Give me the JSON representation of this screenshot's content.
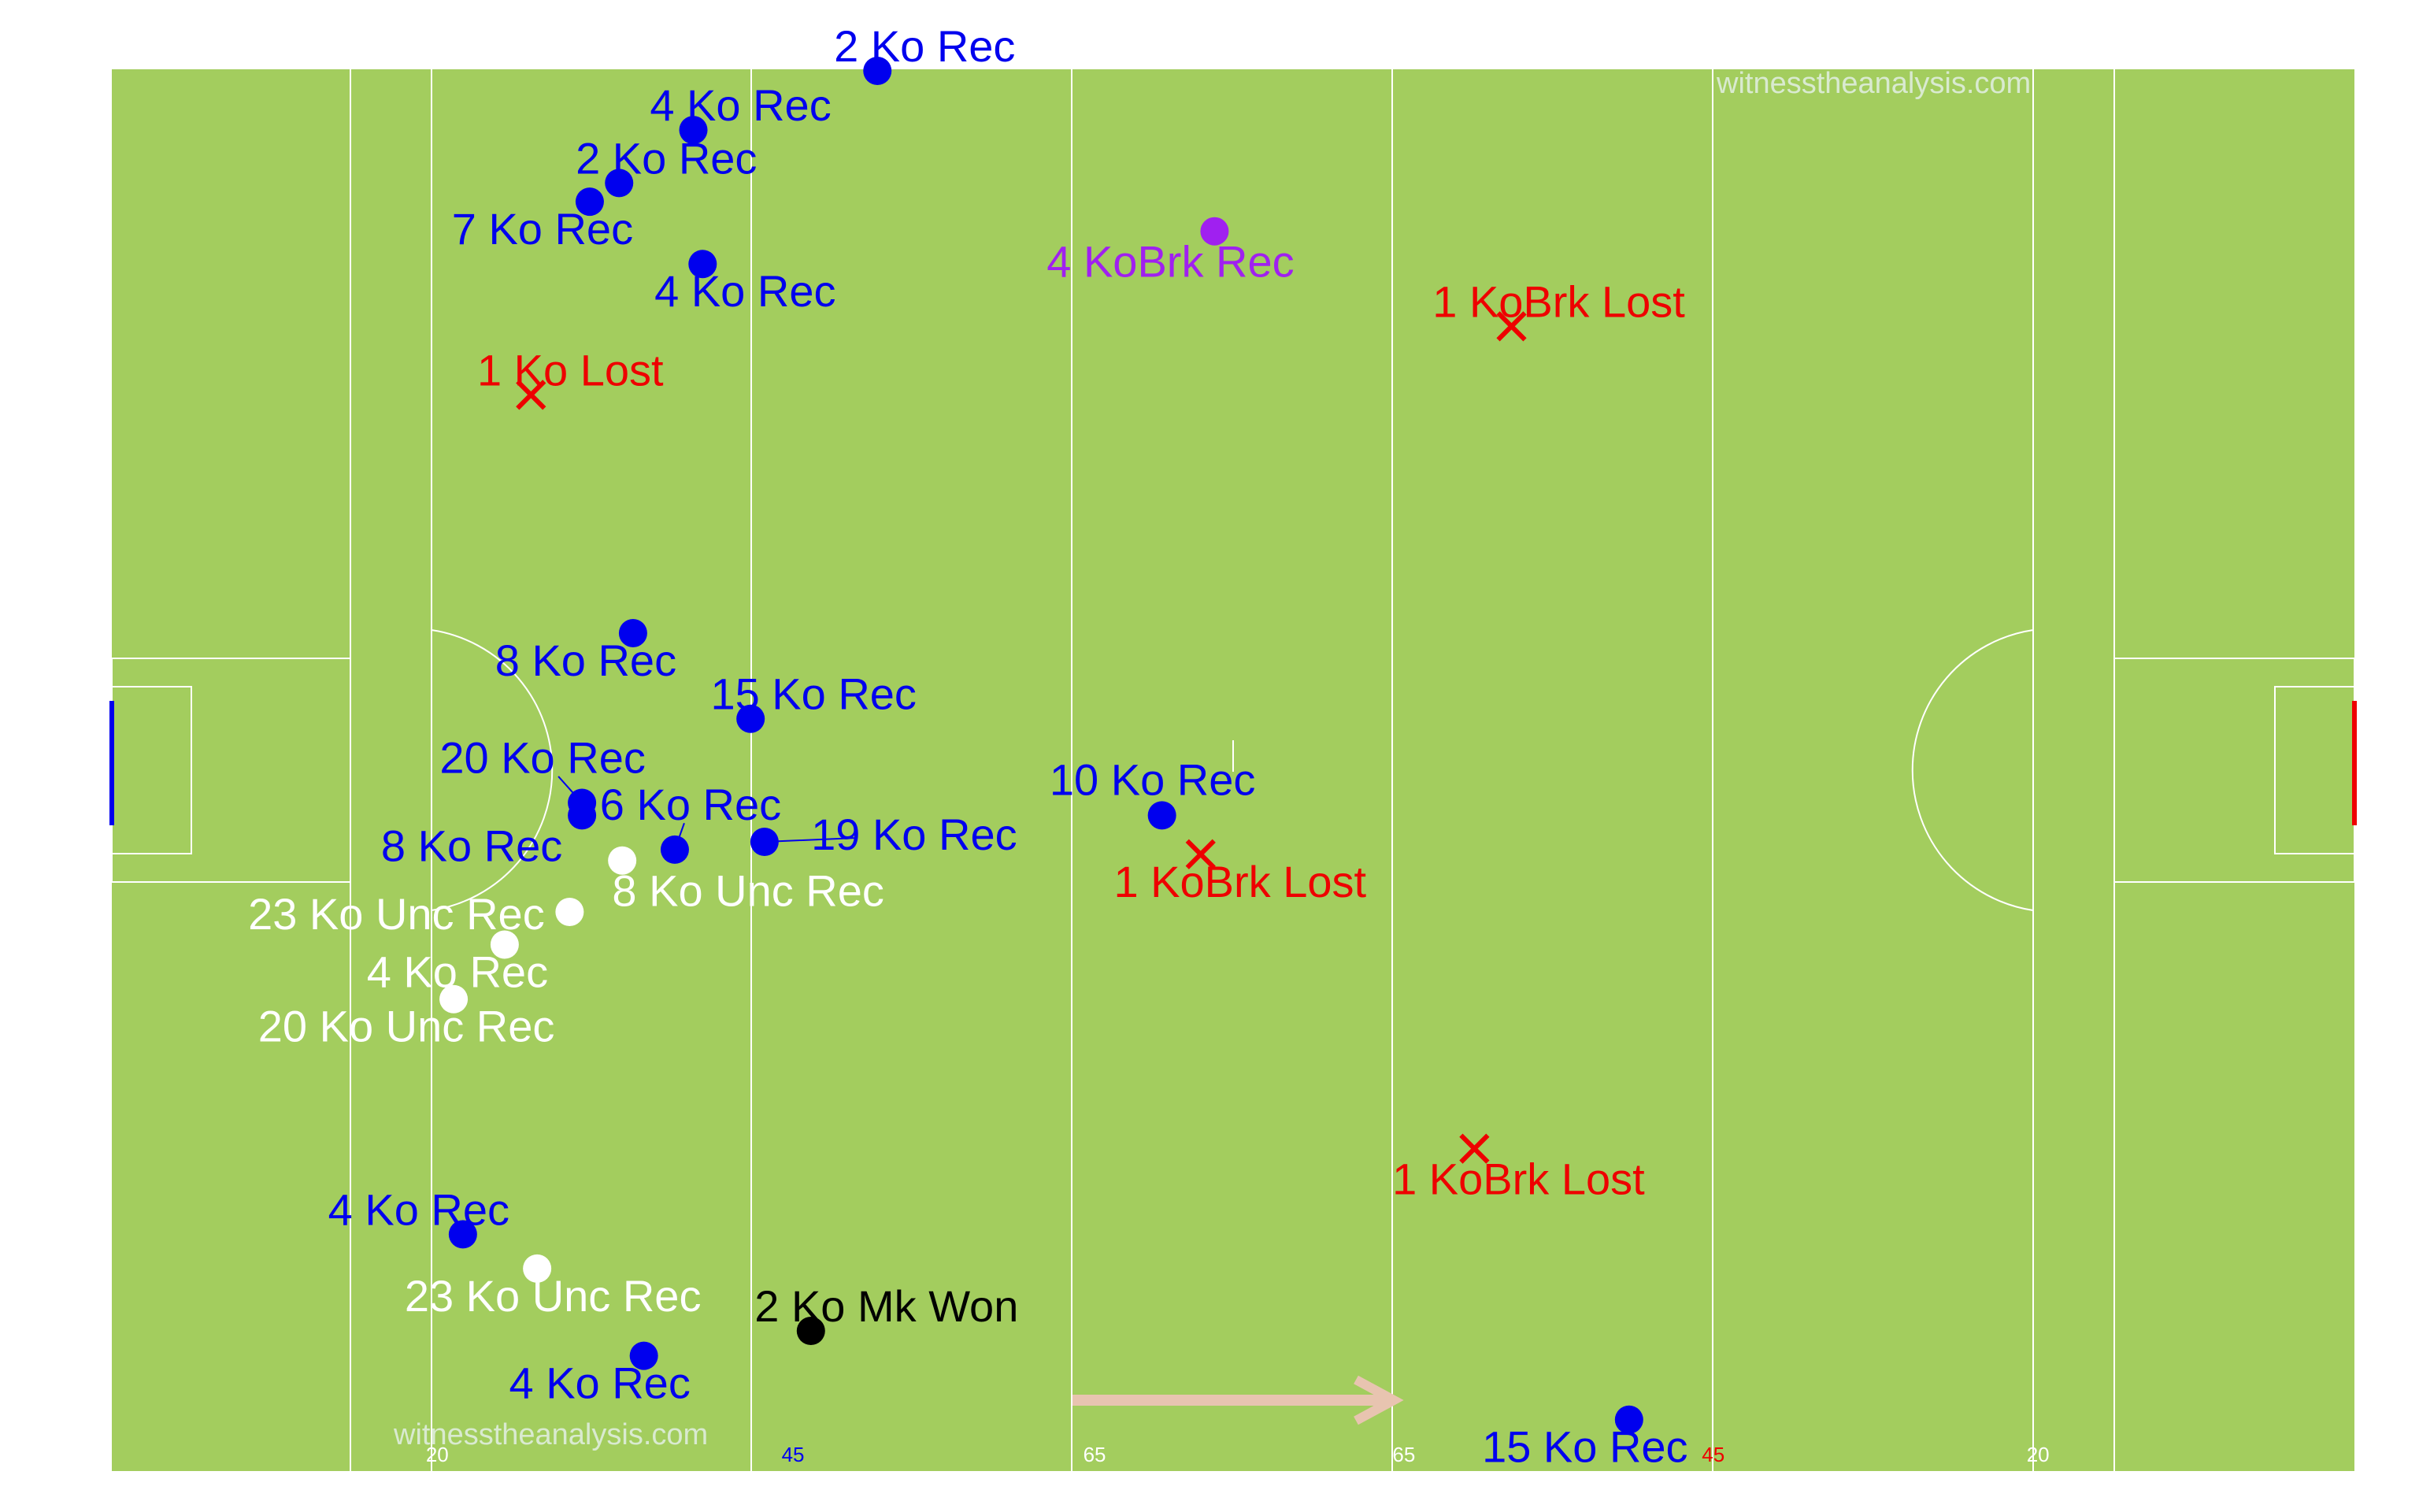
{
  "watermark_text": "witnesstheanalysis.com",
  "colors": {
    "grass": "#a3cd5e",
    "lines": "#ffffff",
    "rec": "#0000ee",
    "lost": "#ee0000",
    "kobrk_rec": "#a020f0",
    "mark_won": "#000000",
    "unc_rec": "#ffffff",
    "direction_arrow": "#e8c4b0",
    "left_goal": "#0000ee",
    "right_goal": "#ee0000"
  },
  "chart_data": {
    "type": "scatter",
    "title": "",
    "xlabel": "",
    "ylabel": "",
    "xlim": [
      0,
      145
    ],
    "ylim": [
      0,
      90
    ],
    "tick_labels": [
      {
        "x": 20,
        "text": "20",
        "color": "#ffffff"
      },
      {
        "x": 43,
        "text": "45",
        "color": "#0000ee"
      },
      {
        "x": 62.5,
        "text": "65",
        "color": "#ffffff"
      },
      {
        "x": 82.5,
        "text": "65",
        "color": "#ffffff"
      },
      {
        "x": 102.5,
        "text": "45",
        "color": "#ee0000"
      },
      {
        "x": 123.5,
        "text": "20",
        "color": "#ffffff"
      }
    ],
    "points": [
      {
        "x": 49.5,
        "y": 0.1,
        "marker": "dot",
        "color": "#0000ee",
        "label": "2 Ko Rec",
        "dx": 30,
        "dy": -15
      },
      {
        "x": 37.6,
        "y": 3.9,
        "marker": "dot",
        "color": "#0000ee",
        "label": "4 Ko Rec",
        "dx": 30,
        "dy": -15
      },
      {
        "x": 32.8,
        "y": 7.3,
        "marker": "dot",
        "color": "#0000ee",
        "label": "2 Ko Rec",
        "dx": 30,
        "dy": -15
      },
      {
        "x": 30.9,
        "y": 8.5,
        "marker": "dot",
        "color": "#0000ee",
        "label": "7 Ko Rec",
        "dx": -30,
        "dy": 18
      },
      {
        "x": 38.2,
        "y": 12.5,
        "marker": "dot",
        "color": "#0000ee",
        "label": "4 Ko Rec",
        "dx": 27,
        "dy": 18
      },
      {
        "x": 71.3,
        "y": 10.4,
        "marker": "dot",
        "color": "#a020f0",
        "label": "4 KoBrk Rec",
        "dx": -28,
        "dy": 20
      },
      {
        "x": 90.5,
        "y": 16.5,
        "marker": "cross",
        "color": "#ee0000",
        "label": "1 KoBrk Lost",
        "dx": 30,
        "dy": -15
      },
      {
        "x": 27.1,
        "y": 20.9,
        "marker": "cross",
        "color": "#ee0000",
        "label": "1 Ko Lost",
        "dx": 25,
        "dy": -15
      },
      {
        "x": 33.7,
        "y": 36.2,
        "marker": "dot",
        "color": "#0000ee",
        "label": "8 Ko Rec",
        "dx": -30,
        "dy": 18
      },
      {
        "x": 41.3,
        "y": 41.7,
        "marker": "dot",
        "color": "#0000ee",
        "label": "15 Ko Rec",
        "dx": 40,
        "dy": -15
      },
      {
        "x": 30.4,
        "y": 47.1,
        "marker": "dot",
        "color": "#0000ee",
        "label": "20 Ko Rec",
        "dx": -25,
        "dy": -28,
        "leader": true
      },
      {
        "x": 30.4,
        "y": 47.9,
        "marker": "dot",
        "color": "#0000ee",
        "label": "8 Ko Rec",
        "dx": -70,
        "dy": 20
      },
      {
        "x": 36.4,
        "y": 50.1,
        "marker": "dot",
        "color": "#0000ee",
        "label": "6 Ko Rec",
        "dx": 10,
        "dy": -28,
        "leader": true
      },
      {
        "x": 42.2,
        "y": 49.6,
        "marker": "dot",
        "color": "#0000ee",
        "label": "19 Ko Rec",
        "dx": 95,
        "dy": -4,
        "leader": true
      },
      {
        "x": 67.9,
        "y": 47.9,
        "marker": "dot",
        "color": "#0000ee",
        "label": "10 Ko Rec",
        "dx": -6,
        "dy": -22
      },
      {
        "x": 70.4,
        "y": 50.4,
        "marker": "cross",
        "color": "#ee0000",
        "label": "1 KoBrk Lost",
        "dx": 25,
        "dy": 18
      },
      {
        "x": 33.0,
        "y": 50.8,
        "marker": "dot",
        "color": "#ffffff",
        "label": "8 Ko Unc Rec",
        "dx": 80,
        "dy": 20
      },
      {
        "x": 29.6,
        "y": 54.1,
        "marker": "dot",
        "color": "#ffffff",
        "label": "23 Ko Unc Rec",
        "dx": -110,
        "dy": 2
      },
      {
        "x": 25.4,
        "y": 56.2,
        "marker": "dot",
        "color": "#ffffff",
        "label": "4 Ko Rec",
        "dx": -30,
        "dy": 18
      },
      {
        "x": 22.1,
        "y": 59.7,
        "marker": "dot",
        "color": "#ffffff",
        "label": "20 Ko Unc Rec",
        "dx": -30,
        "dy": 18
      },
      {
        "x": 88.1,
        "y": 69.3,
        "marker": "cross",
        "color": "#ee0000",
        "label": "1 KoBrk Lost",
        "dx": 28,
        "dy": 20
      },
      {
        "x": 22.7,
        "y": 74.8,
        "marker": "dot",
        "color": "#0000ee",
        "label": "4 Ko Rec",
        "dx": -28,
        "dy": -15
      },
      {
        "x": 27.5,
        "y": 77.0,
        "marker": "dot",
        "color": "#ffffff",
        "label": "23 Ko Unc Rec",
        "dx": 10,
        "dy": 18
      },
      {
        "x": 45.2,
        "y": 81.0,
        "marker": "dot",
        "color": "#000000",
        "label": "2 Ko Mk Won",
        "dx": 48,
        "dy": -15
      },
      {
        "x": 34.4,
        "y": 82.6,
        "marker": "dot",
        "color": "#0000ee",
        "label": "4 Ko Rec",
        "dx": -28,
        "dy": 18
      },
      {
        "x": 98.1,
        "y": 86.7,
        "marker": "dot",
        "color": "#0000ee",
        "label": "15 Ko Rec",
        "dx": -28,
        "dy": 18
      }
    ]
  }
}
